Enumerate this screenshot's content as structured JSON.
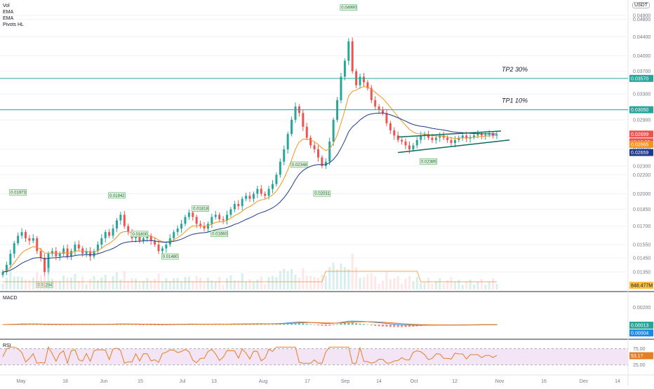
{
  "header": {
    "indicators": [
      "Vol",
      "EMA",
      "EMA",
      "Pivots HL"
    ],
    "currency": "USDT"
  },
  "chart_data": [
    {
      "type": "candlestick",
      "pane": "main",
      "y_ticks": [
        "0.04900",
        "0.04800",
        "0.04400",
        "0.04000",
        "0.03700",
        "0.03300",
        "0.02900",
        "0.02500",
        "0.02300",
        "0.02200",
        "0.02000",
        "0.01850",
        "0.01700",
        "0.01550",
        "0.01450",
        "0.01350"
      ],
      "y_ticks_log_scale": true,
      "x_ticks": [
        "May",
        "18",
        "Jun",
        "15",
        "Jul",
        "13",
        "Aug",
        "17",
        "Sep",
        "14",
        "Oct",
        "12",
        "Nov",
        "16",
        "Dec",
        "14"
      ],
      "candles_approx": {
        "closes": [
          0.0135,
          0.014,
          0.0148,
          0.0156,
          0.0162,
          0.0165,
          0.016,
          0.0158,
          0.016,
          0.015,
          0.0145,
          0.0135,
          0.0148,
          0.015,
          0.0146,
          0.0148,
          0.0152,
          0.0146,
          0.015,
          0.0155,
          0.0152,
          0.0148,
          0.015,
          0.0146,
          0.015,
          0.0155,
          0.016,
          0.0165,
          0.0162,
          0.0168,
          0.0175,
          0.018,
          0.017,
          0.0165,
          0.016,
          0.0162,
          0.0158,
          0.016,
          0.0162,
          0.0158,
          0.0155,
          0.015,
          0.0152,
          0.0155,
          0.016,
          0.0165,
          0.0168,
          0.0172,
          0.0178,
          0.0182,
          0.0178,
          0.0172,
          0.017,
          0.0168,
          0.0172,
          0.0178,
          0.018,
          0.0176,
          0.0175,
          0.018,
          0.0185,
          0.019,
          0.0188,
          0.0195,
          0.0198,
          0.0195,
          0.02,
          0.0205,
          0.02,
          0.0198,
          0.0205,
          0.021,
          0.022,
          0.0235,
          0.025,
          0.027,
          0.029,
          0.031,
          0.03,
          0.028,
          0.0265,
          0.0255,
          0.025,
          0.024,
          0.023,
          0.0235,
          0.026,
          0.029,
          0.032,
          0.036,
          0.039,
          0.043,
          0.037,
          0.0345,
          0.036,
          0.035,
          0.034,
          0.032,
          0.031,
          0.0305,
          0.03,
          0.0285,
          0.0275,
          0.0268,
          0.0262,
          0.026,
          0.0255,
          0.025,
          0.0255,
          0.0262,
          0.0268,
          0.027,
          0.0265,
          0.0262,
          0.0265,
          0.0268,
          0.0265,
          0.0262,
          0.0258,
          0.0262,
          0.0265,
          0.0268,
          0.0264,
          0.0266,
          0.0268,
          0.027,
          0.0268,
          0.0269,
          0.027,
          0.0268,
          0.0269
        ]
      },
      "pivot_labels": [
        {
          "text": "0.01973",
          "at_index": 4
        },
        {
          "text": "0.01284",
          "at_index": 11
        },
        {
          "text": "0.01942",
          "at_index": 30
        },
        {
          "text": "0.01600",
          "at_index": 36
        },
        {
          "text": "0.01480",
          "at_index": 44
        },
        {
          "text": "0.01818",
          "at_index": 52
        },
        {
          "text": "0.01660",
          "at_index": 57
        },
        {
          "text": "0.02348",
          "at_index": 78
        },
        {
          "text": "0.02031",
          "at_index": 84
        },
        {
          "text": "0.04990",
          "at_index": 91
        },
        {
          "text": "0.02385",
          "at_index": 112
        }
      ],
      "horizontal_levels": [
        {
          "label": "TP2 30%",
          "value": "0.03570",
          "color": "#26a69a"
        },
        {
          "label": "TP1 10%",
          "value": "0.03050",
          "color": "#26a69a"
        }
      ],
      "price_markers": [
        {
          "text": "0.02699",
          "color": "#ef5350"
        },
        {
          "text": "10:10:39",
          "color": "#ef5350"
        },
        {
          "text": "0.02665",
          "color": "#f7931a"
        },
        {
          "text": "0.02659",
          "color": "#1e3a8a"
        }
      ],
      "volume_marker": {
        "text": "848.477M",
        "color": "#f5c242"
      }
    },
    {
      "type": "macd",
      "pane": "MACD",
      "y_ticks": [
        "0.00200"
      ],
      "markers": [
        {
          "text": "0.00013",
          "color": "#26a69a"
        },
        {
          "text": "0.00004",
          "color": "#1e88e5"
        }
      ]
    },
    {
      "type": "rsi",
      "pane": "RSI",
      "y_ticks": [
        "75.00",
        "25.00"
      ],
      "band": [
        25,
        75
      ],
      "markers": [
        {
          "text": "53.17",
          "color": "#e67e22"
        }
      ]
    }
  ],
  "colors": {
    "up": "#26a69a",
    "down": "#ef5350",
    "ema_fast": "#f7931a",
    "ema_slow": "#1e3a8a",
    "grid": "#f0f3fa",
    "axis_text": "#787b86",
    "rsi_fill": "#f3e5f5",
    "rsi_line": "#e67e22",
    "macd_line": "#2196f3",
    "signal_line": "#ff6d00"
  }
}
